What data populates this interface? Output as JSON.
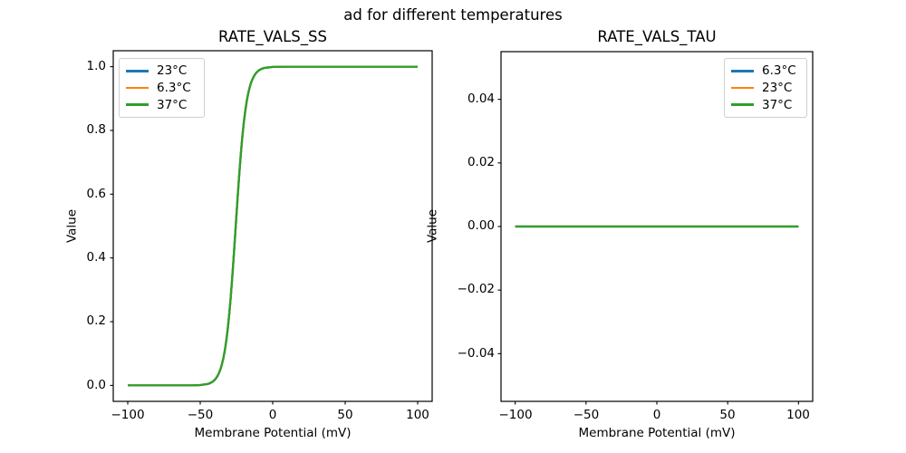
{
  "figure": {
    "suptitle": "ad for different temperatures",
    "background": "#ffffff",
    "text_color": "#000000",
    "spine_color": "#000000"
  },
  "chart_data": [
    {
      "type": "line",
      "title": "RATE_VALS_SS",
      "xlabel": "Membrane Potential (mV)",
      "ylabel": "Value",
      "xlim": [
        -110,
        110
      ],
      "ylim": [
        -0.05,
        1.05
      ],
      "xticks": [
        -100,
        -50,
        0,
        50,
        100
      ],
      "xtick_labels": [
        "−100",
        "−50",
        "0",
        "50",
        "100"
      ],
      "yticks": [
        0.0,
        0.2,
        0.4,
        0.6,
        0.8,
        1.0
      ],
      "ytick_labels": [
        "0.0",
        "0.2",
        "0.4",
        "0.6",
        "0.8",
        "1.0"
      ],
      "grid": false,
      "legend_position": "upper-left",
      "note": "all three temperature curves coincide exactly (sigmoid steady-state, half-activation ≈ −25 mV)",
      "x": [
        -100,
        -90,
        -80,
        -70,
        -60,
        -55,
        -50,
        -45,
        -44,
        -43,
        -42,
        -41,
        -40,
        -39,
        -38,
        -37,
        -36,
        -35,
        -34,
        -33,
        -32,
        -31,
        -30,
        -29,
        -28,
        -27,
        -26,
        -25,
        -24,
        -23,
        -22,
        -21,
        -20,
        -19,
        -18,
        -17,
        -16,
        -15,
        -14,
        -13,
        -12,
        -11,
        -10,
        -9,
        -8,
        -7,
        -6,
        -5,
        0,
        10,
        25,
        50,
        100
      ],
      "y_shared": [
        0,
        0,
        0,
        0,
        0.0001,
        0.0003,
        0.0011,
        0.0044,
        0.0058,
        0.0077,
        0.0101,
        0.0133,
        0.0175,
        0.023,
        0.0301,
        0.0394,
        0.0513,
        0.0667,
        0.0862,
        0.1107,
        0.1412,
        0.1783,
        0.2227,
        0.2744,
        0.3331,
        0.3973,
        0.4653,
        0.5347,
        0.6027,
        0.6669,
        0.7256,
        0.7773,
        0.8217,
        0.8588,
        0.8893,
        0.9138,
        0.9333,
        0.9487,
        0.9606,
        0.9699,
        0.977,
        0.9825,
        0.9867,
        0.9899,
        0.9923,
        0.9942,
        0.9956,
        0.9967,
        0.9992,
        0.9999,
        1.0,
        1.0,
        1.0
      ],
      "series": [
        {
          "name": "23°C",
          "color": "#1f77b4"
        },
        {
          "name": "6.3°C",
          "color": "#ff7f0e"
        },
        {
          "name": "37°C",
          "color": "#2ca02c"
        }
      ]
    },
    {
      "type": "line",
      "title": "RATE_VALS_TAU",
      "xlabel": "Membrane Potential (mV)",
      "ylabel": "Value",
      "xlim": [
        -110,
        110
      ],
      "ylim": [
        -0.055,
        0.055
      ],
      "xticks": [
        -100,
        -50,
        0,
        50,
        100
      ],
      "xtick_labels": [
        "−100",
        "−50",
        "0",
        "50",
        "100"
      ],
      "yticks": [
        0.04,
        0.02,
        0.0,
        -0.02,
        -0.04
      ],
      "ytick_labels": [
        "0.04",
        "0.02",
        "0.00",
        "−0.02",
        "−0.04"
      ],
      "grid": false,
      "legend_position": "upper-right",
      "note": "all three temperature curves coincide exactly (constant 0)",
      "x": [
        -100,
        100
      ],
      "y_shared": [
        0,
        0
      ],
      "series": [
        {
          "name": "6.3°C",
          "color": "#1f77b4"
        },
        {
          "name": "23°C",
          "color": "#ff7f0e"
        },
        {
          "name": "37°C",
          "color": "#2ca02c"
        }
      ]
    }
  ]
}
